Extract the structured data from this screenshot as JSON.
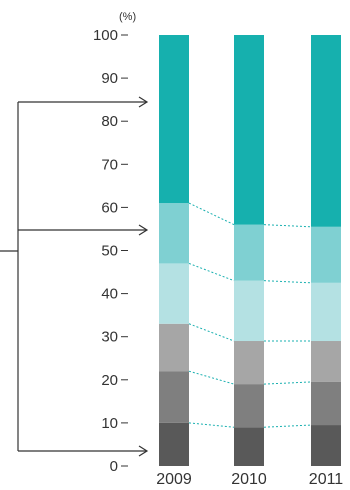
{
  "chart_data": {
    "type": "bar",
    "stacked": true,
    "unit_label": "(%)",
    "categories": [
      "2009",
      "2010",
      "2011"
    ],
    "highlight_category": "2011",
    "highlight_color": "#1ab0b0",
    "ylim": [
      0,
      100
    ],
    "yticks": [
      "0",
      "10",
      "20",
      "30",
      "40",
      "50",
      "60",
      "70",
      "80",
      "90",
      "100"
    ],
    "grid": false,
    "connector_lines": "dashed",
    "connector_color": "#1ab0b0",
    "segment_colors": [
      "#595959",
      "#7f7f7f",
      "#a6a6a6",
      "#b4e1e3",
      "#7fd0d2",
      "#16b0ae"
    ],
    "series": [
      {
        "values": [
          10,
          9,
          9.5
        ]
      },
      {
        "values": [
          12,
          10,
          10
        ]
      },
      {
        "values": [
          11,
          10,
          9.5
        ]
      },
      {
        "values": [
          14,
          14,
          13.5
        ]
      },
      {
        "values": [
          14,
          13,
          13
        ]
      },
      {
        "values": [
          39,
          44,
          44.5
        ]
      }
    ]
  }
}
